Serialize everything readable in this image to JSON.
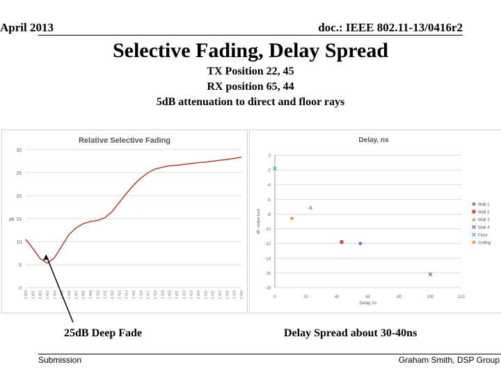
{
  "header": {
    "date": "April 2013",
    "doc": "doc.: IEEE 802.11-13/0416r2"
  },
  "title": "Selective Fading, Delay Spread",
  "subtitle": [
    "TX Position 22, 45",
    "RX position 65, 44",
    "5dB attenuation to direct and floor rays"
  ],
  "captions": {
    "left": "25dB Deep Fade",
    "right": "Delay Spread about 30-40ns"
  },
  "footer": {
    "left": "Submission",
    "right": "Graham Smith, DSP Group"
  },
  "colors": {
    "line": "#b5473f",
    "wall1": "#4f81bd",
    "wall2": "#c0504d",
    "wall3": "#9bbb59",
    "wall4": "#8064a2",
    "floor": "#4bacc6",
    "ceiling": "#f79646"
  },
  "chart_data": [
    {
      "type": "line",
      "title": "Relative Selective Fading",
      "ylabel": "dB",
      "xlabel": "",
      "ylim": [
        0,
        30
      ],
      "yticks": [
        0,
        5,
        10,
        15,
        20,
        25,
        30
      ],
      "categories": [
        "2.400",
        "2.401",
        "2.402",
        "2.403",
        "2.404",
        "2.405",
        "2.406",
        "2.407",
        "2.408",
        "2.409",
        "2.410",
        "2.411",
        "2.412",
        "2.413",
        "2.414",
        "2.415",
        "2.416",
        "2.417",
        "2.418",
        "2.419",
        "2.420",
        "2.421",
        "2.422",
        "2.423",
        "2.424",
        "2.425",
        "2.426",
        "2.427",
        "2.428",
        "2.429",
        "2.430"
      ],
      "values": [
        10.5,
        8.5,
        6.3,
        5.3,
        6.5,
        9.0,
        11.5,
        13.0,
        13.9,
        14.4,
        14.6,
        15.2,
        16.5,
        18.5,
        20.5,
        22.3,
        23.8,
        25.0,
        25.8,
        26.2,
        26.5,
        26.6,
        26.8,
        27.0,
        27.2,
        27.3,
        27.5,
        27.7,
        27.9,
        28.1,
        28.4
      ]
    },
    {
      "type": "scatter",
      "title": "Delay, ns",
      "xlabel": "Delay, ns",
      "ylabel": "dB, relative level",
      "xlim": [
        0,
        120
      ],
      "ylim": [
        -18,
        0
      ],
      "xticks": [
        0,
        20,
        40,
        60,
        80,
        100,
        120
      ],
      "yticks": [
        0,
        -2,
        -4,
        -6,
        -8,
        -10,
        -12,
        -14,
        -16,
        -18
      ],
      "series": [
        {
          "name": "Wall 1",
          "x": [
            55
          ],
          "y": [
            -12
          ],
          "marker": "diamond"
        },
        {
          "name": "Wall 2",
          "x": [
            43
          ],
          "y": [
            -11.8
          ],
          "marker": "square"
        },
        {
          "name": "Wall 3",
          "x": [
            23
          ],
          "y": [
            -7.1
          ],
          "marker": "triangle"
        },
        {
          "name": "Wall 4",
          "x": [
            100
          ],
          "y": [
            -16.2
          ],
          "marker": "x"
        },
        {
          "name": "Floor",
          "x": [
            0
          ],
          "y": [
            -1.8
          ],
          "marker": "x"
        },
        {
          "name": "Ceiling",
          "x": [
            11
          ],
          "y": [
            -8.6
          ],
          "marker": "circle"
        }
      ]
    }
  ]
}
